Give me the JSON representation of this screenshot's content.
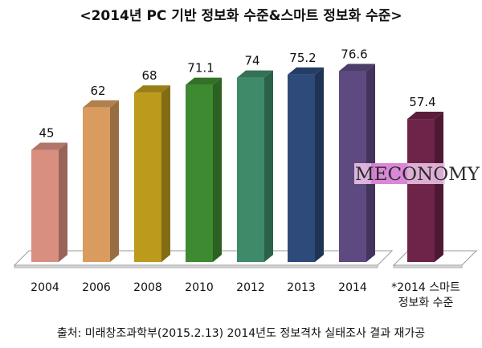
{
  "chart_data": {
    "type": "bar",
    "title": "<2014년 PC 기반 정보화 수준&스마트 정보화 수준>",
    "categories": [
      "2004",
      "2006",
      "2008",
      "2010",
      "2012",
      "2013",
      "2014",
      "*2014 스마트 정보화 수준"
    ],
    "category_lines": [
      [
        "2004"
      ],
      [
        "2006"
      ],
      [
        "2008"
      ],
      [
        "2010"
      ],
      [
        "2012"
      ],
      [
        "2013"
      ],
      [
        "2014"
      ],
      [
        "*2014 스마트",
        "정보화 수준"
      ]
    ],
    "values": [
      45,
      62,
      68,
      71.1,
      74,
      75.2,
      76.6,
      57.4
    ],
    "value_labels": [
      "45",
      "62",
      "68",
      "71.1",
      "74",
      "75.2",
      "76.6",
      "57.4"
    ],
    "colors": [
      "#d98f80",
      "#d99c5e",
      "#bc9a1c",
      "#3e8a30",
      "#3f8a68",
      "#2d4a7a",
      "#5e4a80",
      "#6e2448"
    ],
    "ylim": [
      0,
      80
    ],
    "xlabel": "",
    "ylabel": "",
    "grid": false,
    "source": "출처: 미래창조과학부(2015.2.13) 2014년도 정보격차 실태조사 결과 재가공"
  },
  "watermark": "MECONOMY"
}
